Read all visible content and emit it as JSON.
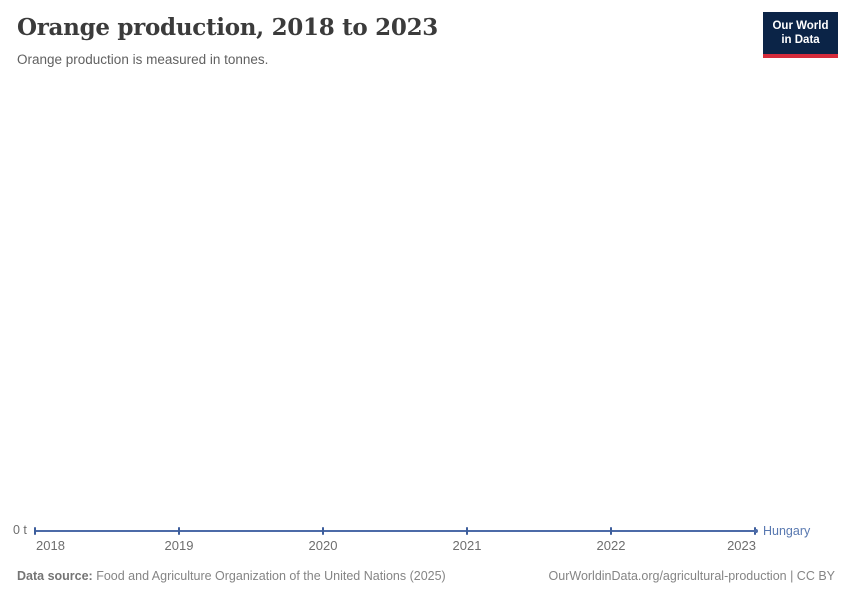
{
  "header": {
    "title": "Orange production, 2018 to 2023",
    "subtitle": "Orange production is measured in tonnes.",
    "logo": {
      "line1": "Our World",
      "line2": "in Data"
    }
  },
  "chart_data": {
    "type": "line",
    "title": "Orange production, 2018 to 2023",
    "unit": "tonnes",
    "x": [
      2018,
      2019,
      2020,
      2021,
      2022,
      2023
    ],
    "series": [
      {
        "name": "Hungary",
        "values": [
          0,
          0,
          0,
          0,
          0,
          0
        ]
      }
    ],
    "ylabel": "",
    "xlabel": "",
    "y_axis_tick_labels": [
      "0 t"
    ],
    "ylim": [
      0,
      0
    ],
    "grid": false,
    "legend_position": "end-of-line"
  },
  "axis": {
    "zero_label": "0 t",
    "entity_label": "Hungary"
  },
  "footer": {
    "source_label": "Data source:",
    "source_text": " Food and Agriculture Organization of the United Nations (2025)",
    "credit": "OurWorldinData.org/agricultural-production | CC BY"
  },
  "colors": {
    "line": "#4C6BA8",
    "tick": "#3D5E9C",
    "entity_label": "#5878B0",
    "logo_navy": "#0B2447",
    "logo_red": "#D52B3B"
  }
}
